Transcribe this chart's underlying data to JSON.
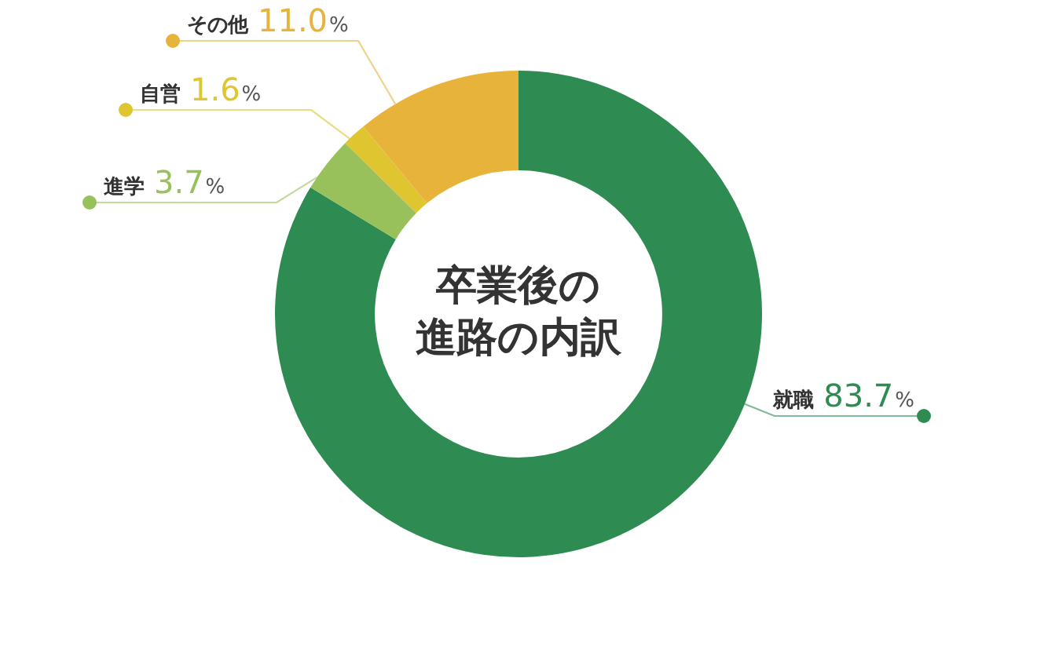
{
  "chart_data": {
    "type": "donut",
    "title": "卒業後の進路の内訳",
    "categories": [
      "就職",
      "進学",
      "自営",
      "その他"
    ],
    "values": [
      83.7,
      3.7,
      1.6,
      11.0
    ],
    "colors": [
      "#2e8c52",
      "#98c15c",
      "#dfc631",
      "#e8b33a"
    ],
    "value_labels": [
      "83.7%",
      "3.7%",
      "1.6%",
      "11.0%"
    ],
    "legend": false
  }
}
